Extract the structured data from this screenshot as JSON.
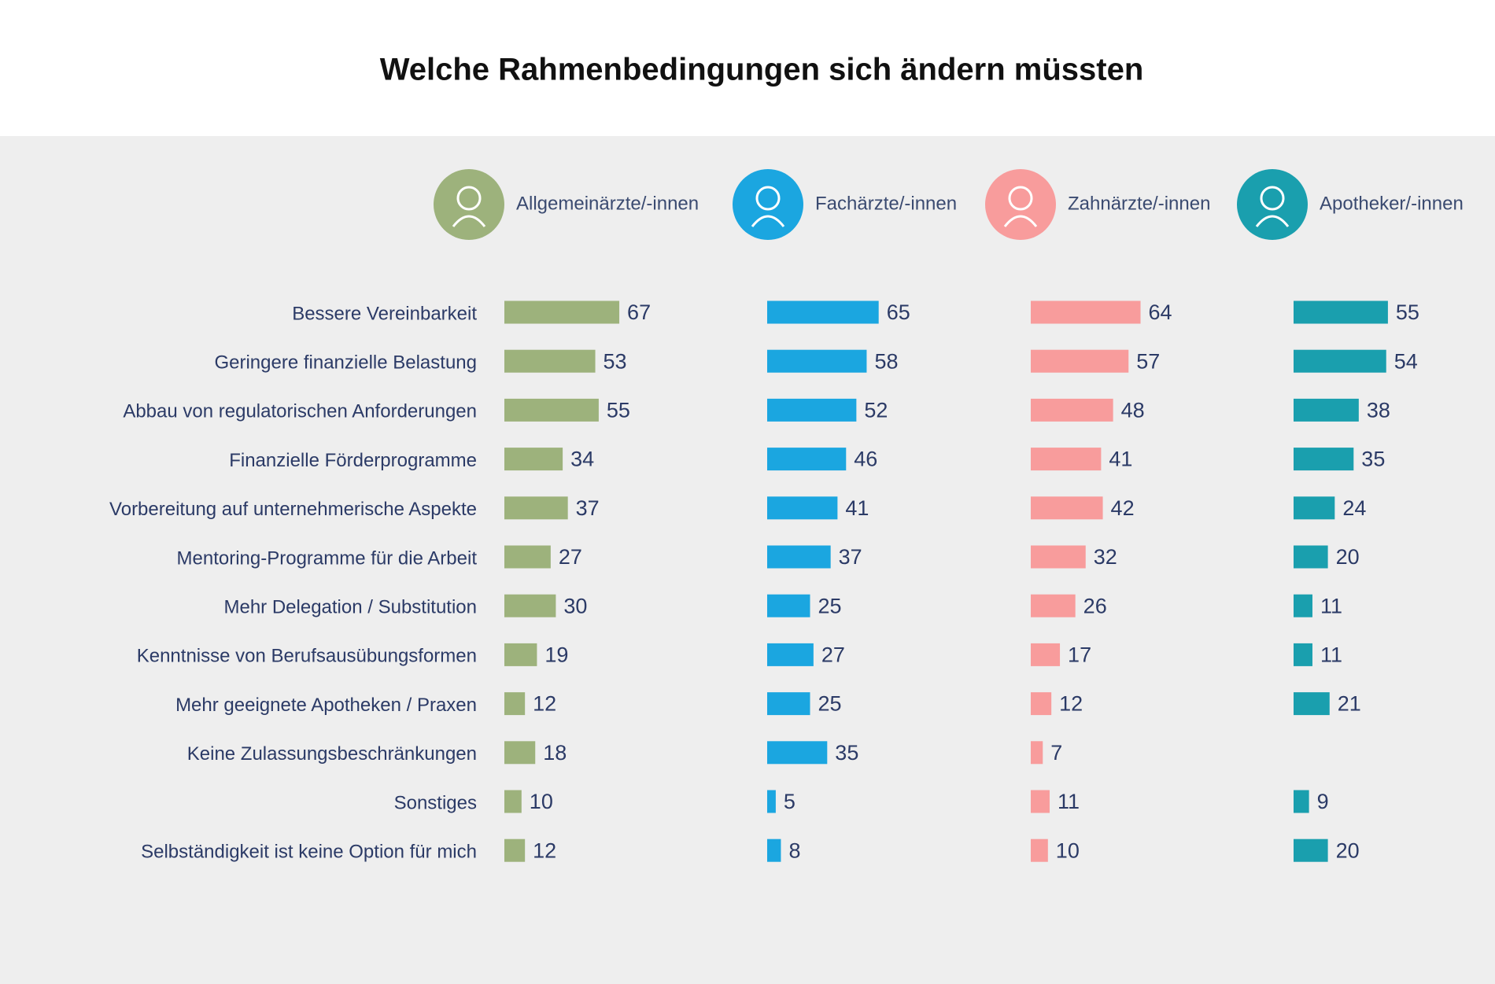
{
  "chart_data": {
    "type": "bar",
    "title": "Welche Rahmenbedingungen sich ändern müssten",
    "categories": [
      "Bessere Vereinbarkeit",
      "Geringere finanzielle Belastung",
      "Abbau von regulatorischen Anforderungen",
      "Finanzielle Förderprogramme",
      "Vorbereitung auf unternehmerische Aspekte",
      "Mentoring-Programme für die Arbeit",
      "Mehr Delegation / Substitution",
      "Kenntnisse von Berufsausübungsformen",
      "Mehr geeignete Apotheken / Praxen",
      "Keine Zulassungsbeschränkungen",
      "Sonstiges",
      "Selbständigkeit ist keine Option für mich"
    ],
    "series": [
      {
        "name": "Allgemeinärzte/-innen",
        "color": "#9db27c",
        "values": [
          67,
          53,
          55,
          34,
          37,
          27,
          30,
          19,
          12,
          18,
          10,
          12
        ]
      },
      {
        "name": "Fachärzte/-innen",
        "color": "#1ba6e0",
        "values": [
          65,
          58,
          52,
          46,
          41,
          37,
          25,
          27,
          25,
          35,
          5,
          8
        ]
      },
      {
        "name": "Zahnärzte/-innen",
        "color": "#f89c9c",
        "values": [
          64,
          57,
          48,
          41,
          42,
          32,
          26,
          17,
          12,
          7,
          11,
          10
        ]
      },
      {
        "name": "Apotheker/-innen",
        "color": "#1a9fae",
        "values": [
          55,
          54,
          38,
          35,
          24,
          20,
          11,
          11,
          21,
          null,
          9,
          20
        ]
      }
    ]
  }
}
